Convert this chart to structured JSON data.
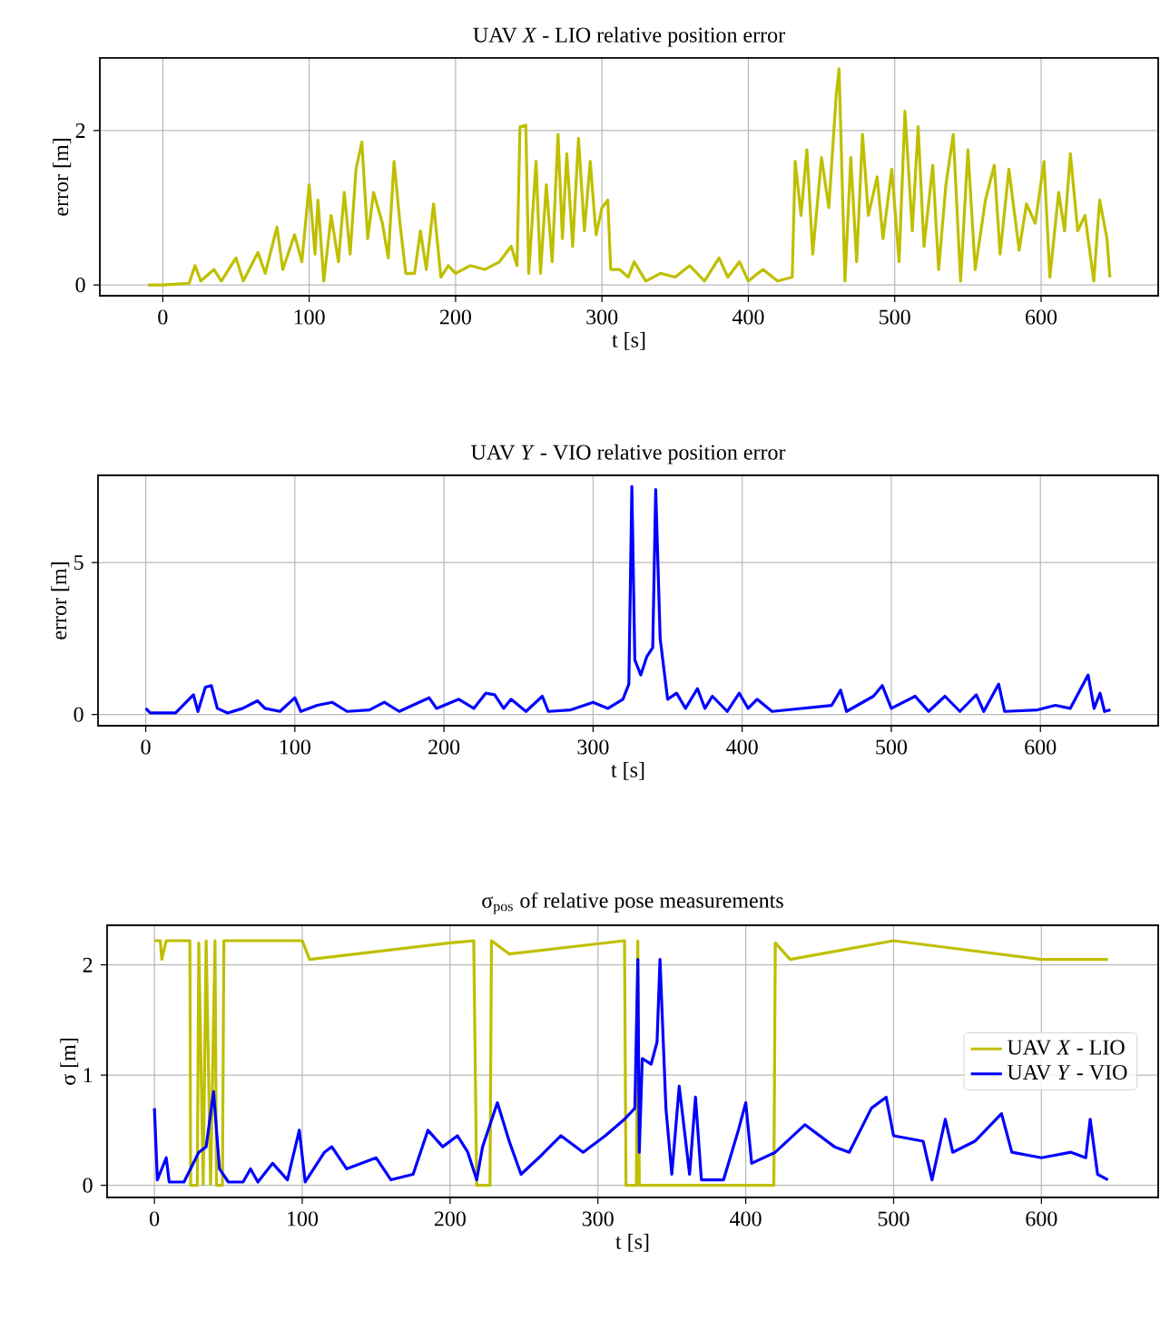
{
  "chart_data": [
    {
      "type": "line",
      "title": "UAV *X* - LIO relative position error",
      "xlabel": "t [s]",
      "ylabel": "error [m]",
      "xlim": [
        -43,
        680
      ],
      "ylim": [
        -0.14,
        2.94
      ],
      "xticks": [
        0,
        100,
        200,
        300,
        400,
        500,
        600
      ],
      "yticks": [
        0,
        2
      ],
      "grid": true,
      "series": [
        {
          "color": "#bfbf00",
          "x": [
            -10,
            0,
            10,
            18,
            22,
            26,
            35,
            40,
            50,
            55,
            65,
            70,
            78,
            82,
            90,
            95,
            100,
            104,
            106,
            110,
            115,
            120,
            124,
            128,
            132,
            136,
            140,
            144,
            150,
            154,
            158,
            162,
            166,
            172,
            176,
            180,
            185,
            190,
            195,
            200,
            210,
            220,
            230,
            238,
            242,
            244,
            248,
            250,
            255,
            258,
            262,
            266,
            270,
            273,
            276,
            280,
            284,
            288,
            292,
            296,
            300,
            304,
            306,
            312,
            318,
            322,
            330,
            340,
            350,
            360,
            370,
            380,
            386,
            394,
            400,
            410,
            420,
            430,
            432,
            436,
            440,
            444,
            450,
            455,
            460,
            462,
            466,
            470,
            474,
            478,
            482,
            488,
            492,
            498,
            503,
            507,
            512,
            516,
            520,
            526,
            530,
            535,
            540,
            545,
            550,
            555,
            562,
            568,
            572,
            578,
            585,
            590,
            596,
            602,
            606,
            612,
            616,
            620,
            625,
            630,
            636,
            640,
            645,
            647
          ],
          "values": [
            0,
            0,
            0.01,
            0.02,
            0.25,
            0.05,
            0.2,
            0.05,
            0.35,
            0.05,
            0.42,
            0.15,
            0.75,
            0.2,
            0.65,
            0.3,
            1.3,
            0.4,
            1.1,
            0.05,
            0.9,
            0.3,
            1.2,
            0.4,
            1.5,
            1.85,
            0.6,
            1.2,
            0.8,
            0.35,
            1.6,
            0.8,
            0.15,
            0.15,
            0.7,
            0.2,
            1.05,
            0.1,
            0.25,
            0.15,
            0.25,
            0.2,
            0.3,
            0.5,
            0.25,
            2.05,
            2.07,
            0.15,
            1.6,
            0.15,
            1.3,
            0.3,
            1.95,
            0.6,
            1.7,
            0.5,
            1.9,
            0.7,
            1.6,
            0.65,
            1.0,
            1.1,
            0.2,
            0.2,
            0.1,
            0.3,
            0.05,
            0.15,
            0.1,
            0.25,
            0.05,
            0.35,
            0.1,
            0.3,
            0.05,
            0.2,
            0.05,
            0.1,
            1.6,
            0.9,
            1.75,
            0.4,
            1.65,
            1.0,
            2.45,
            2.8,
            0.05,
            1.65,
            0.3,
            1.95,
            0.9,
            1.4,
            0.6,
            1.5,
            0.3,
            2.25,
            0.7,
            2.05,
            0.5,
            1.55,
            0.2,
            1.3,
            1.95,
            0.05,
            1.75,
            0.2,
            1.1,
            1.55,
            0.4,
            1.5,
            0.45,
            1.05,
            0.8,
            1.6,
            0.1,
            1.2,
            0.7,
            1.7,
            0.7,
            0.9,
            0.05,
            1.1,
            0.6,
            0.1
          ]
        }
      ]
    },
    {
      "type": "line",
      "title": "UAV *Y* - VIO relative position error",
      "xlabel": "t [s]",
      "ylabel": "error [m]",
      "xlim": [
        -32,
        679
      ],
      "ylim": [
        -0.37,
        7.87
      ],
      "xticks": [
        0,
        100,
        200,
        300,
        400,
        500,
        600
      ],
      "yticks": [
        0,
        5
      ],
      "grid": true,
      "series": [
        {
          "color": "#0000ff",
          "x": [
            0,
            3,
            10,
            20,
            32,
            35,
            40,
            44,
            48,
            55,
            65,
            75,
            80,
            90,
            100,
            104,
            115,
            125,
            135,
            150,
            160,
            170,
            190,
            195,
            210,
            220,
            228,
            234,
            240,
            245,
            255,
            266,
            270,
            285,
            300,
            310,
            320,
            324,
            326,
            328,
            332,
            336,
            340,
            342,
            345,
            350,
            356,
            362,
            370,
            375,
            380,
            390,
            398,
            404,
            410,
            420,
            440,
            460,
            466,
            470,
            488,
            494,
            500,
            516,
            525,
            536,
            546,
            557,
            562,
            572,
            576,
            598,
            610,
            620,
            632,
            636,
            640,
            643,
            647
          ],
          "values": [
            0.2,
            0.05,
            0.05,
            0.05,
            0.65,
            0.1,
            0.9,
            0.95,
            0.2,
            0.05,
            0.2,
            0.45,
            0.2,
            0.1,
            0.55,
            0.1,
            0.3,
            0.4,
            0.1,
            0.15,
            0.4,
            0.1,
            0.55,
            0.2,
            0.5,
            0.2,
            0.7,
            0.65,
            0.2,
            0.5,
            0.1,
            0.6,
            0.1,
            0.15,
            0.4,
            0.2,
            0.5,
            1.0,
            7.5,
            1.8,
            1.3,
            1.9,
            2.2,
            7.4,
            2.5,
            0.5,
            0.7,
            0.2,
            0.85,
            0.2,
            0.6,
            0.1,
            0.7,
            0.2,
            0.5,
            0.1,
            0.2,
            0.3,
            0.8,
            0.1,
            0.6,
            0.95,
            0.2,
            0.6,
            0.1,
            0.6,
            0.1,
            0.65,
            0.1,
            1.0,
            0.1,
            0.15,
            0.3,
            0.2,
            1.3,
            0.2,
            0.7,
            0.1,
            0.15
          ]
        }
      ]
    },
    {
      "type": "line",
      "title": "σ$_{pos}$ of relative pose measurements",
      "xlabel": "t [s]",
      "ylabel": "σ [m]",
      "xlim": [
        -32,
        679
      ],
      "ylim": [
        -0.11,
        2.36
      ],
      "xticks": [
        0,
        100,
        200,
        300,
        400,
        500,
        600
      ],
      "yticks": [
        0,
        1,
        2
      ],
      "grid": true,
      "legend": "right",
      "series": [
        {
          "name": "UAV *X* - LIO",
          "color": "#bfbf00",
          "x": [
            0,
            4,
            5,
            8,
            24,
            24.5,
            29,
            30,
            33,
            35,
            38,
            41,
            42,
            46,
            47,
            100,
            105,
            200,
            216,
            218,
            227,
            228,
            240,
            318,
            319,
            326,
            327,
            328,
            419,
            420,
            430,
            500,
            600,
            645
          ],
          "values": [
            2.22,
            2.22,
            2.05,
            2.22,
            2.22,
            0,
            0,
            2.2,
            0.01,
            2.22,
            0.01,
            2.22,
            0,
            0,
            2.22,
            2.22,
            2.05,
            2.2,
            2.22,
            0,
            0,
            2.22,
            2.1,
            2.22,
            0,
            0,
            2.22,
            0,
            0,
            2.2,
            2.05,
            2.22,
            2.05,
            2.05
          ]
        },
        {
          "name": "UAV *Y* - VIO",
          "color": "#0000ff",
          "x": [
            0,
            2,
            8,
            10,
            20,
            30,
            35,
            40,
            44,
            50,
            60,
            65,
            70,
            80,
            90,
            98,
            102,
            115,
            120,
            130,
            150,
            160,
            175,
            185,
            195,
            205,
            212,
            218,
            222,
            232,
            240,
            248,
            260,
            275,
            290,
            305,
            318,
            325,
            327,
            328,
            330,
            336,
            340,
            342,
            346,
            350,
            355,
            362,
            366,
            370,
            385,
            395,
            400,
            404,
            420,
            440,
            460,
            470,
            485,
            495,
            500,
            520,
            526,
            535,
            540,
            555,
            573,
            580,
            600,
            620,
            630,
            633,
            638,
            645
          ],
          "values": [
            0.7,
            0.05,
            0.25,
            0.03,
            0.03,
            0.3,
            0.35,
            0.85,
            0.15,
            0.03,
            0.03,
            0.15,
            0.03,
            0.2,
            0.05,
            0.5,
            0.03,
            0.3,
            0.35,
            0.15,
            0.25,
            0.05,
            0.1,
            0.5,
            0.35,
            0.45,
            0.3,
            0.05,
            0.35,
            0.75,
            0.4,
            0.1,
            0.25,
            0.45,
            0.3,
            0.45,
            0.6,
            0.7,
            2.05,
            0.3,
            1.15,
            1.1,
            1.3,
            2.05,
            0.7,
            0.1,
            0.9,
            0.1,
            0.8,
            0.05,
            0.05,
            0.5,
            0.75,
            0.2,
            0.3,
            0.55,
            0.35,
            0.3,
            0.7,
            0.8,
            0.45,
            0.4,
            0.05,
            0.6,
            0.3,
            0.4,
            0.65,
            0.3,
            0.25,
            0.3,
            0.25,
            0.6,
            0.1,
            0.05
          ]
        }
      ]
    }
  ]
}
